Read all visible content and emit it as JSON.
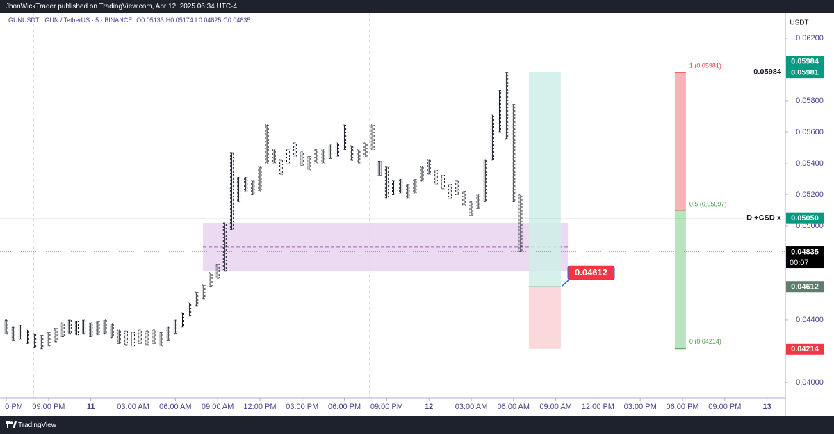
{
  "header": {
    "text": "JhonWickTrader published on TradingView.com, Apr 12, 2025 06:34 UTC-4"
  },
  "footer": {
    "brand": "TradingView"
  },
  "chart_data": {
    "type": "candlestick",
    "symbol": "GUNUSDT · GUN / TetherUS · 5 · BINANCE",
    "ohlc": [
      {
        "label": "O",
        "value": 0.05133
      },
      {
        "label": "H",
        "value": 0.05174
      },
      {
        "label": "L",
        "value": 0.04825
      },
      {
        "label": "C",
        "value": 0.04835
      }
    ],
    "currency": "USDT",
    "color": "#131722",
    "x": [
      -3,
      -2.5,
      -2,
      -1.5,
      -1,
      -0.5,
      0,
      0.5,
      1,
      1.5,
      2,
      2.5,
      3,
      3.5,
      4,
      4.5,
      5,
      5.5,
      6,
      6.5,
      7,
      7.5,
      8,
      8.5,
      9,
      9.5,
      10,
      10.5,
      11,
      11.5,
      12,
      12.5,
      13,
      13.5,
      14,
      14.5,
      15,
      15.5,
      16,
      16.5,
      17,
      17.5,
      18,
      18.5,
      19,
      19.5,
      20,
      20.5,
      21,
      21.5,
      22,
      22.5,
      23,
      23.5,
      24,
      24.5,
      25,
      25.5,
      26,
      26.5,
      27,
      27.5,
      28,
      28.5,
      29,
      29.5,
      30,
      30.5,
      31,
      31.5,
      32,
      32.5,
      33,
      33.5
    ],
    "high": [
      0.044,
      0.04355,
      0.04364,
      0.04337,
      0.04311,
      0.04302,
      0.0432,
      0.04346,
      0.04382,
      0.044,
      0.04391,
      0.044,
      0.04382,
      0.04391,
      0.044,
      0.04373,
      0.04337,
      0.04328,
      0.0432,
      0.04337,
      0.04328,
      0.04337,
      0.0432,
      0.04355,
      0.044,
      0.04444,
      0.04511,
      0.04577,
      0.04622,
      0.04702,
      0.04755,
      0.05022,
      0.05467,
      0.05311,
      0.05311,
      0.05289,
      0.05378,
      0.05644,
      0.05489,
      0.05422,
      0.05489,
      0.05533,
      0.05475,
      0.05444,
      0.05489,
      0.05489,
      0.0552,
      0.05533,
      0.05644,
      0.05511,
      0.05489,
      0.05533,
      0.05644,
      0.05411,
      0.05378,
      0.05289,
      0.05298,
      0.05267,
      0.05298,
      0.05378,
      0.05422,
      0.05356,
      0.05324,
      0.05267,
      0.05289,
      0.05222,
      0.05156,
      0.052,
      0.05422,
      0.05711,
      0.05867,
      0.05981,
      0.05778,
      0.052
    ],
    "low": [
      0.04312,
      0.04267,
      0.04276,
      0.04249,
      0.04223,
      0.04214,
      0.04232,
      0.04258,
      0.04294,
      0.04312,
      0.04303,
      0.04312,
      0.04294,
      0.04303,
      0.04312,
      0.04285,
      0.04249,
      0.0424,
      0.04232,
      0.04249,
      0.0424,
      0.04249,
      0.04232,
      0.04267,
      0.04312,
      0.04356,
      0.04423,
      0.04489,
      0.04534,
      0.04614,
      0.04667,
      0.04711,
      0.04978,
      0.05156,
      0.05222,
      0.052,
      0.05222,
      0.054,
      0.054,
      0.05333,
      0.054,
      0.05444,
      0.05387,
      0.05356,
      0.054,
      0.054,
      0.05432,
      0.05444,
      0.05489,
      0.05422,
      0.054,
      0.05444,
      0.05489,
      0.05322,
      0.05178,
      0.052,
      0.05209,
      0.05178,
      0.05209,
      0.05289,
      0.05333,
      0.05267,
      0.05236,
      0.05178,
      0.052,
      0.05133,
      0.05067,
      0.05111,
      0.05156,
      0.05422,
      0.056,
      0.05556,
      0.05156,
      0.04835
    ],
    "xlim": [
      -3.45,
      52.3
    ],
    "xticks": [
      {
        "value": -3,
        "label": "0 PM"
      },
      {
        "value": 0,
        "label": "09:00 PM"
      },
      {
        "value": 3,
        "label": "11"
      },
      {
        "value": 6,
        "label": "03:00 AM"
      },
      {
        "value": 9,
        "label": "06:00 AM"
      },
      {
        "value": 12,
        "label": "09:00 AM"
      },
      {
        "value": 15,
        "label": "12:00 PM"
      },
      {
        "value": 18,
        "label": "03:00 PM"
      },
      {
        "value": 21,
        "label": "06:00 PM"
      },
      {
        "value": 24,
        "label": "09:00 PM"
      },
      {
        "value": 27,
        "label": "12"
      },
      {
        "value": 30,
        "label": "03:00 AM"
      },
      {
        "value": 33,
        "label": "06:00 AM"
      },
      {
        "value": 36,
        "label": "09:00 AM"
      },
      {
        "value": 39,
        "label": "12:00 PM"
      },
      {
        "value": 42,
        "label": "03:00 PM"
      },
      {
        "value": 45,
        "label": "06:00 PM"
      },
      {
        "value": 48,
        "label": "09:00 PM"
      },
      {
        "value": 51,
        "label": "13"
      }
    ],
    "ylim": [
      0.03902,
      0.06364
    ],
    "yticks": [
      {
        "value": 0.062,
        "label": "0.06200"
      },
      {
        "value": 0.058,
        "label": "0.05800"
      },
      {
        "value": 0.056,
        "label": "0.05600"
      },
      {
        "value": 0.054,
        "label": "0.05400"
      },
      {
        "value": 0.052,
        "label": "0.05200"
      },
      {
        "value": 0.05,
        "label": "0.05000"
      },
      {
        "value": 0.044,
        "label": "0.04400"
      },
      {
        "value": 0.04,
        "label": "0.04000"
      }
    ],
    "horizontal_lines": [
      {
        "value": 0.05984,
        "label": "0.05984",
        "color": "#26a69a"
      },
      {
        "value": 0.0505,
        "label": "D +CSD x",
        "color": "#26a69a"
      }
    ],
    "current_price": 0.04835,
    "zone": {
      "top": 0.05019,
      "bottom": 0.04711,
      "mid": 0.04867,
      "start": 10.96,
      "end": 36.86,
      "color": "#e8d3ef"
    },
    "position": {
      "top": 0.05984,
      "entry": 0.04612,
      "bottom": 0.04214,
      "start": 34.09,
      "end": 36.36,
      "label": 0.04612,
      "upper_color": "#cfeee7",
      "lower_color": "#fbd9db",
      "label_color": "#f23645"
    },
    "fib": {
      "start": 44.45,
      "end": 45.24,
      "upper_color": "#f7b3b6",
      "lower_color": "#b9e2bf",
      "levels": [
        {
          "value": 0.05981,
          "label": "1 (0.05981)",
          "color": "#f23645"
        },
        {
          "value": 0.05097,
          "label": "0.5 (0.05097)",
          "color": "#43a047"
        },
        {
          "value": 0.04214,
          "label": "0 (0.04214)",
          "color": "#43a047"
        }
      ]
    },
    "price_tags": [
      {
        "value": 0.05984,
        "label": "0.05984",
        "color": "#089981"
      },
      {
        "value": 0.05981,
        "label": "0.05981",
        "color": "#089981"
      },
      {
        "value": 0.0505,
        "label": "0.05050",
        "color": "#089981"
      },
      {
        "value": 0.04835,
        "label": "0.04835",
        "sub": "00:07",
        "color": "#000000"
      },
      {
        "value": 0.04612,
        "label": "0.04612",
        "color": "#5f7d6c"
      },
      {
        "value": 0.04214,
        "label": "0.04214",
        "color": "#f23645"
      }
    ]
  }
}
